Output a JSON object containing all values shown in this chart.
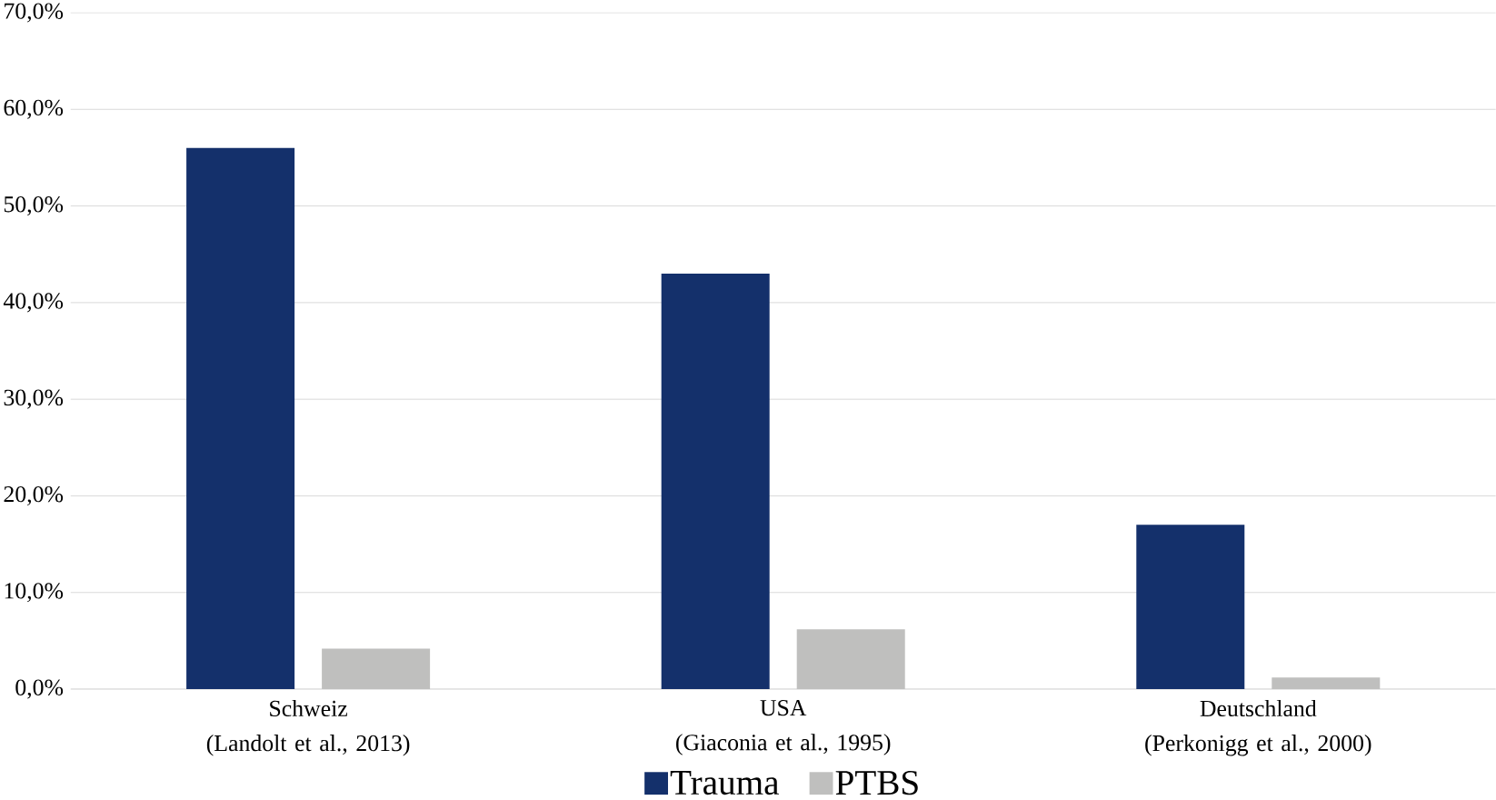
{
  "chart_data": {
    "type": "bar",
    "categories": [
      "Schweiz\n(Landolt et al., 2013)",
      "USA\n(Giaconia et al., 1995)",
      "Deutschland\n(Perkonigg et al., 2000)"
    ],
    "series": [
      {
        "name": "Trauma",
        "color": "#14306b",
        "values": [
          56.0,
          43.0,
          17.0
        ]
      },
      {
        "name": "PTBS",
        "color": "#bfbfbe",
        "values": [
          4.2,
          6.2,
          1.2
        ]
      }
    ],
    "ylim": [
      0,
      70
    ],
    "yticks": [
      {
        "value": 0,
        "label": "0,0%"
      },
      {
        "value": 10,
        "label": "10,0%"
      },
      {
        "value": 20,
        "label": "20,0%"
      },
      {
        "value": 30,
        "label": "30,0%"
      },
      {
        "value": 40,
        "label": "40,0%"
      },
      {
        "value": 50,
        "label": "50,0%"
      },
      {
        "value": 60,
        "label": "60,0%"
      },
      {
        "value": 70,
        "label": "70,0%"
      }
    ],
    "grid": "y",
    "legend": "bottom"
  }
}
